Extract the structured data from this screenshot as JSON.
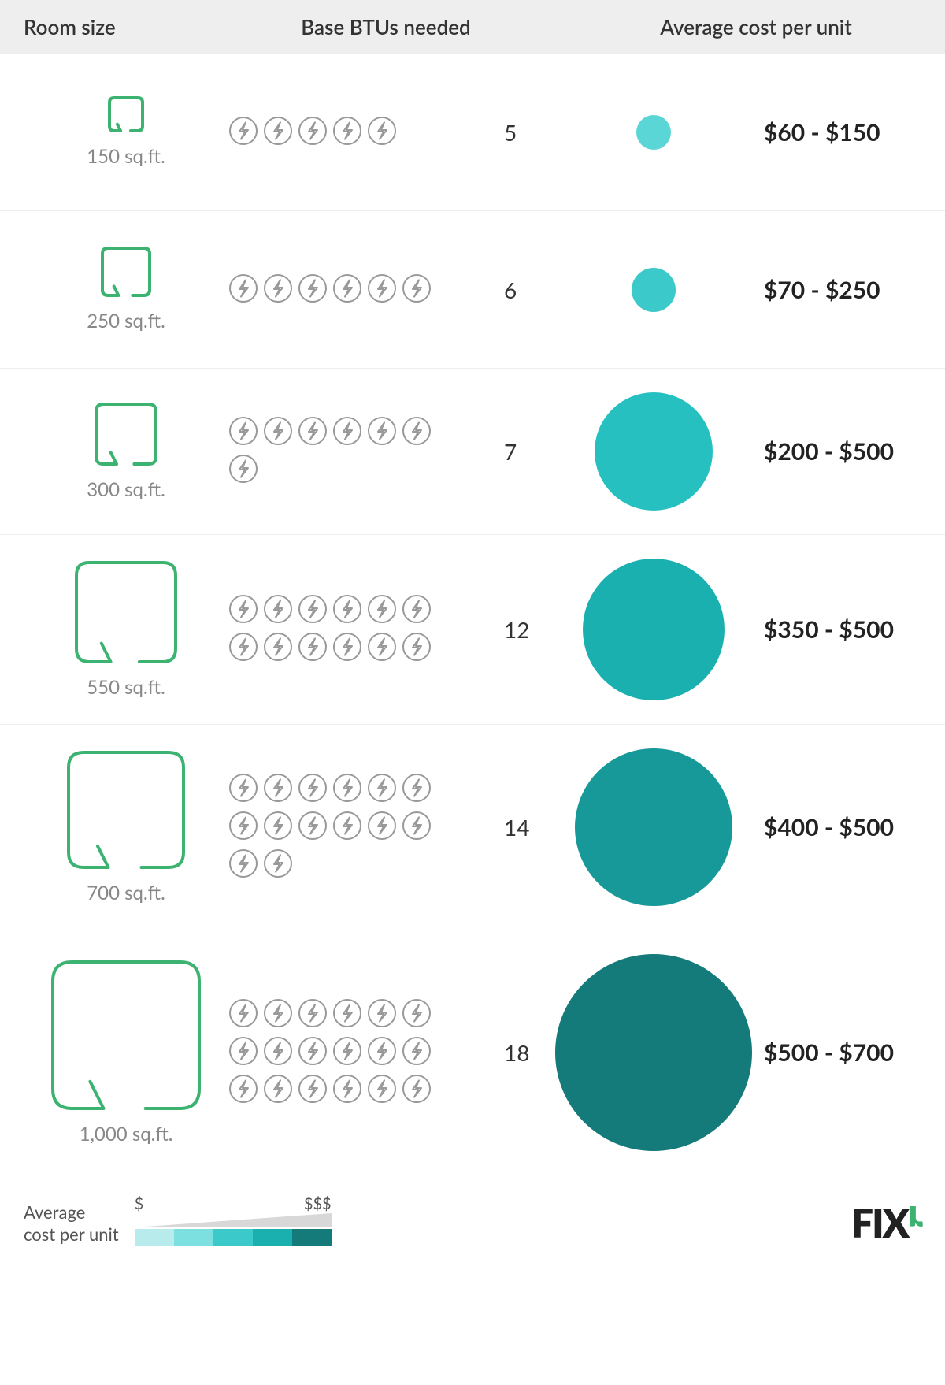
{
  "headers": {
    "room_size": "Room size",
    "btus": "Base BTUs needed",
    "cost": "Average cost per unit"
  },
  "btu_icon": {
    "stroke": "#999999",
    "size": 38
  },
  "room_icon": {
    "stroke": "#3cb371",
    "stroke_width": 4
  },
  "rows": [
    {
      "room_label": "150 sq.ft.",
      "room_icon_size": 46,
      "btu_count": 5,
      "circle_size": 44,
      "circle_color": "#5ad6d6",
      "cost": "$60 - $150"
    },
    {
      "room_label": "250 sq.ft.",
      "room_icon_size": 64,
      "btu_count": 6,
      "circle_size": 56,
      "circle_color": "#3cc9c9",
      "cost": "$70 - $250"
    },
    {
      "room_label": "300 sq.ft.",
      "room_icon_size": 80,
      "btu_count": 7,
      "circle_size": 150,
      "circle_color": "#26c0c0",
      "cost": "$200 - $500"
    },
    {
      "room_label": "550 sq.ft.",
      "room_icon_size": 130,
      "btu_count": 12,
      "circle_size": 180,
      "circle_color": "#1bb0b0",
      "cost": "$350 - $500"
    },
    {
      "room_label": "700 sq.ft.",
      "room_icon_size": 150,
      "btu_count": 14,
      "circle_size": 200,
      "circle_color": "#179999",
      "cost": "$400 - $500"
    },
    {
      "room_label": "1,000 sq.ft.",
      "room_icon_size": 190,
      "btu_count": 18,
      "circle_size": 250,
      "circle_color": "#147a7a",
      "cost": "$500 - $700"
    }
  ],
  "legend": {
    "label_line1": "Average",
    "label_line2": "cost per unit",
    "low": "$",
    "high": "$$$",
    "colors": [
      "#b8ecec",
      "#7de0e0",
      "#3cc9c9",
      "#1bb0b0",
      "#147a7a"
    ]
  },
  "logo": {
    "text": "FIX",
    "accent": "r"
  }
}
